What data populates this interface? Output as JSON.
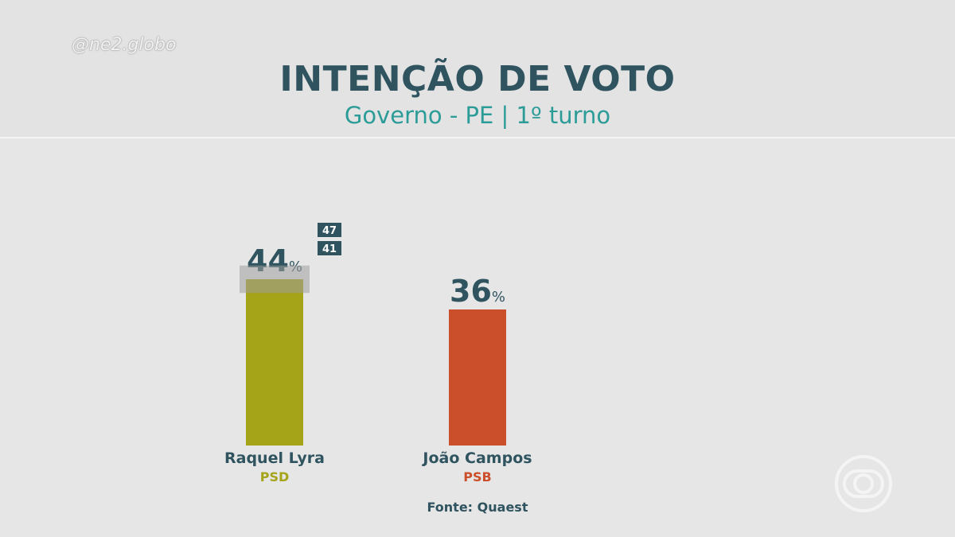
{
  "watermark": "@ne2.globo",
  "source": "Fonte: Quaest",
  "chart_data": {
    "type": "bar",
    "title": "INTENÇÃO DE VOTO",
    "subtitle": "Governo - PE | 1º turno",
    "ylim": [
      0,
      50
    ],
    "unit": "%",
    "grid": false,
    "categories": [
      "Raquel Lyra",
      "João Campos"
    ],
    "parties": [
      "PSD",
      "PSB"
    ],
    "values": [
      44,
      36
    ],
    "colors": [
      "#a5a318",
      "#cc4f2b"
    ],
    "party_colors": [
      "#a5a318",
      "#cc4f2b"
    ],
    "interval": {
      "category": "Raquel Lyra",
      "low": 41,
      "high": 47
    }
  }
}
